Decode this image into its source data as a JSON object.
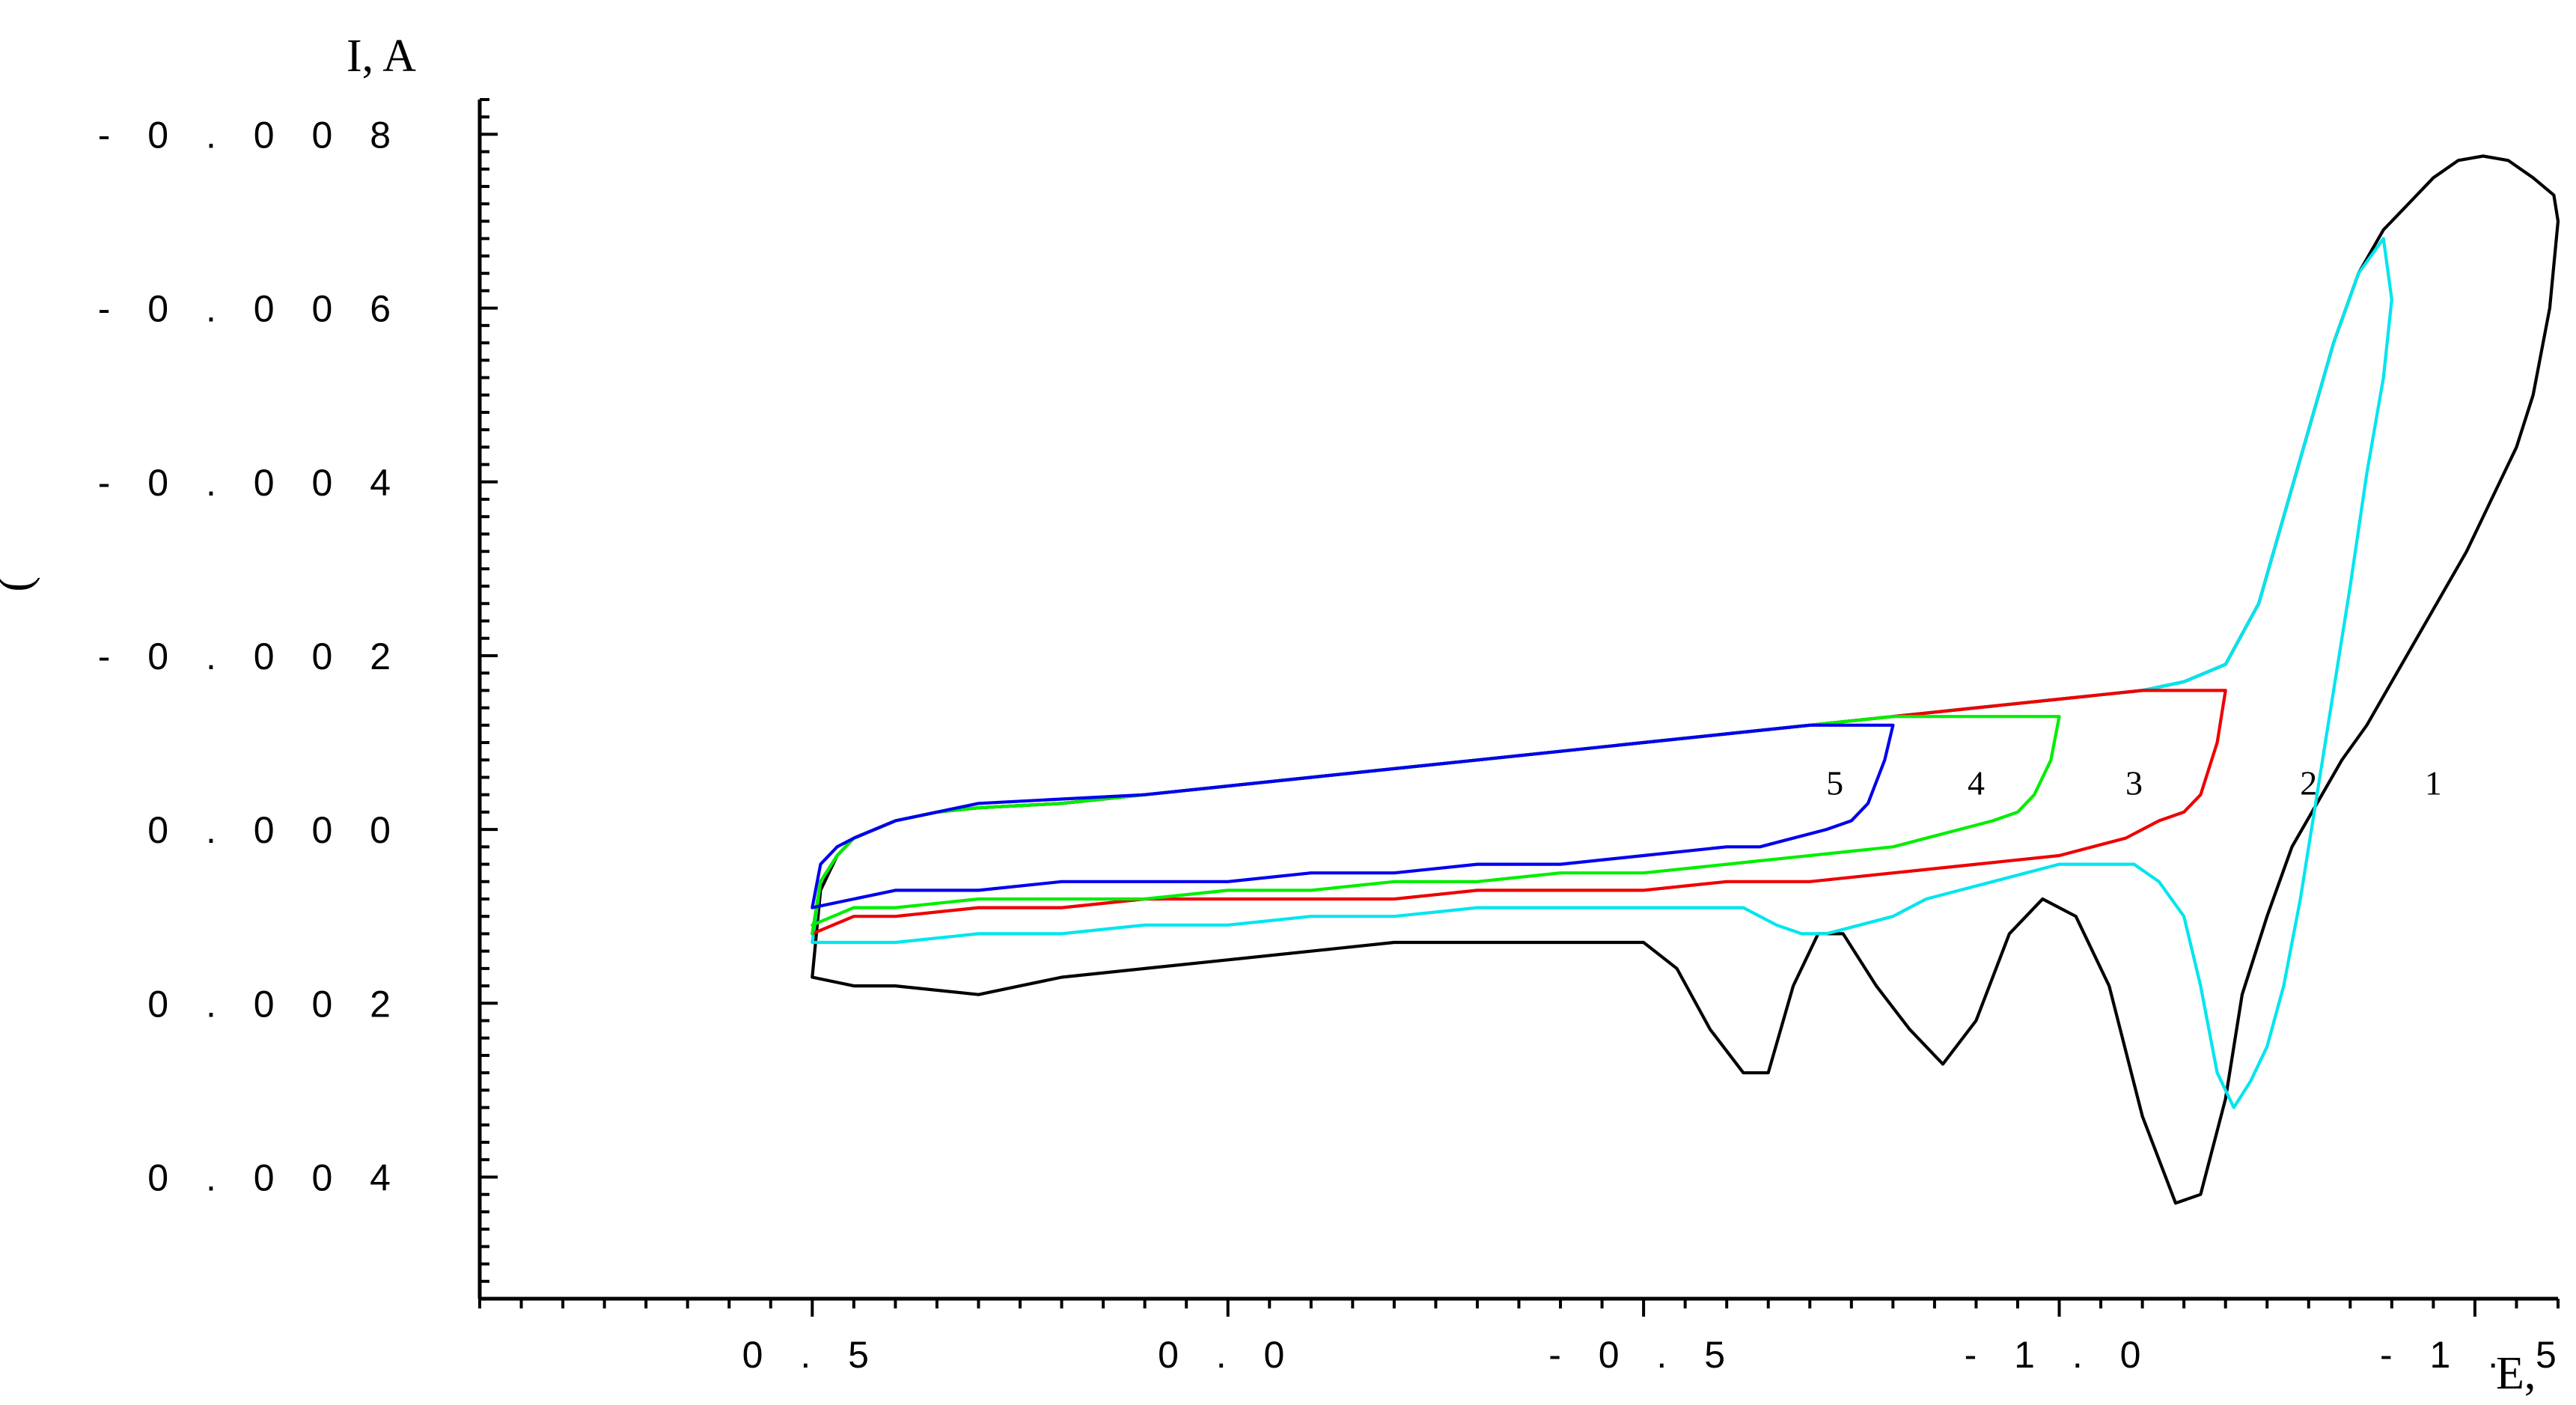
{
  "chart_data": {
    "type": "line",
    "xlabel": "E,",
    "ylabel": "I, A",
    "y_side_label": ")",
    "xlim": [
      0.9,
      -1.6
    ],
    "ylim": [
      0.0054,
      -0.0084
    ],
    "x_tick_values": [
      0.5,
      0.0,
      -0.5,
      -1.0,
      -1.5
    ],
    "x_tick_labels": [
      "0 . 5",
      "0 . 0",
      "- 0 . 5",
      "- 1 . 0",
      "- 1 . 5"
    ],
    "y_tick_values": [
      -0.008,
      -0.006,
      -0.004,
      -0.002,
      0.0,
      0.002,
      0.004
    ],
    "y_tick_labels": [
      "- 0 . 0 0 8",
      "- 0 . 0 0 6",
      "- 0 . 0 0 4",
      "- 0 . 0 0 2",
      "0 . 0 0 0",
      "0 . 0 0 2",
      "0 . 0 0 4"
    ],
    "series": [
      {
        "name": "1",
        "color": "#000000",
        "label_at": [
          -1.45,
          -0.0004
        ],
        "x": [
          0.5,
          0.49,
          0.47,
          0.45,
          0.4,
          0.35,
          0.3,
          0.2,
          0.1,
          0.0,
          -0.1,
          -0.2,
          -0.3,
          -0.4,
          -0.5,
          -0.6,
          -0.7,
          -0.8,
          -0.9,
          -1.0,
          -1.1,
          -1.15,
          -1.2,
          -1.24,
          -1.27,
          -1.3,
          -1.33,
          -1.36,
          -1.39,
          -1.42,
          -1.45,
          -1.48,
          -1.51,
          -1.54,
          -1.57,
          -1.595,
          -1.6,
          -1.59,
          -1.57,
          -1.55,
          -1.52,
          -1.49,
          -1.46,
          -1.43,
          -1.4,
          -1.37,
          -1.34,
          -1.31,
          -1.28,
          -1.25,
          -1.22,
          -1.2,
          -1.17,
          -1.14,
          -1.1,
          -1.06,
          -1.02,
          -0.98,
          -0.94,
          -0.9,
          -0.86,
          -0.82,
          -0.78,
          -0.74,
          -0.71,
          -0.68,
          -0.65,
          -0.62,
          -0.58,
          -0.54,
          -0.5,
          -0.45,
          -0.4,
          -0.3,
          -0.2,
          -0.1,
          0.0,
          0.1,
          0.2,
          0.25,
          0.3,
          0.4,
          0.45,
          0.5
        ],
        "y": [
          0.0017,
          0.0007,
          0.0003,
          0.0001,
          -0.0001,
          -0.0002,
          -0.00025,
          -0.0003,
          -0.0004,
          -0.0005,
          -0.0006,
          -0.0007,
          -0.0008,
          -0.0009,
          -0.001,
          -0.0011,
          -0.0012,
          -0.0013,
          -0.0014,
          -0.0015,
          -0.0016,
          -0.0017,
          -0.0019,
          -0.0026,
          -0.0036,
          -0.0046,
          -0.0056,
          -0.0064,
          -0.0069,
          -0.0072,
          -0.0075,
          -0.0077,
          -0.00775,
          -0.0077,
          -0.0075,
          -0.0073,
          -0.007,
          -0.006,
          -0.005,
          -0.0044,
          -0.0038,
          -0.0032,
          -0.0027,
          -0.0022,
          -0.0017,
          -0.0012,
          -0.0008,
          -0.0003,
          0.0002,
          0.001,
          0.0019,
          0.0031,
          0.0042,
          0.0043,
          0.0033,
          0.0018,
          0.001,
          0.0008,
          0.0012,
          0.0022,
          0.0027,
          0.0023,
          0.0018,
          0.0012,
          0.0012,
          0.0018,
          0.0028,
          0.0028,
          0.0023,
          0.0016,
          0.0013,
          0.0013,
          0.0013,
          0.0013,
          0.0013,
          0.0014,
          0.0015,
          0.0016,
          0.0017,
          0.0018,
          0.0019,
          0.0018,
          0.0018,
          0.0017
        ]
      },
      {
        "name": "2",
        "color": "#00e5ee",
        "label_at": [
          -1.3,
          -0.0004
        ],
        "x": [
          0.5,
          0.49,
          0.47,
          0.45,
          0.4,
          0.35,
          0.3,
          0.2,
          0.1,
          0.0,
          -0.1,
          -0.2,
          -0.3,
          -0.4,
          -0.5,
          -0.6,
          -0.7,
          -0.8,
          -0.9,
          -1.0,
          -1.1,
          -1.15,
          -1.2,
          -1.24,
          -1.27,
          -1.3,
          -1.33,
          -1.36,
          -1.39,
          -1.4,
          -1.39,
          -1.37,
          -1.35,
          -1.33,
          -1.31,
          -1.29,
          -1.27,
          -1.25,
          -1.23,
          -1.21,
          -1.19,
          -1.17,
          -1.15,
          -1.12,
          -1.09,
          -1.06,
          -1.03,
          -1.0,
          -0.96,
          -0.92,
          -0.88,
          -0.84,
          -0.8,
          -0.76,
          -0.72,
          -0.69,
          -0.66,
          -0.62,
          -0.56,
          -0.5,
          -0.4,
          -0.3,
          -0.2,
          -0.1,
          0.0,
          0.1,
          0.2,
          0.3,
          0.4,
          0.45,
          0.5
        ],
        "y": [
          0.0013,
          0.0006,
          0.0003,
          0.0001,
          -0.0001,
          -0.0002,
          -0.00025,
          -0.0003,
          -0.0004,
          -0.0005,
          -0.0006,
          -0.0007,
          -0.0008,
          -0.0009,
          -0.001,
          -0.0011,
          -0.0012,
          -0.0013,
          -0.0014,
          -0.0015,
          -0.0016,
          -0.0017,
          -0.0019,
          -0.0026,
          -0.0036,
          -0.0046,
          -0.0056,
          -0.0064,
          -0.0068,
          -0.0061,
          -0.0052,
          -0.0041,
          -0.0028,
          -0.0016,
          -0.0004,
          0.0008,
          0.0018,
          0.0025,
          0.0029,
          0.0032,
          0.0028,
          0.0018,
          0.001,
          0.0006,
          0.0004,
          0.0004,
          0.0004,
          0.0004,
          0.0005,
          0.0006,
          0.0007,
          0.0008,
          0.001,
          0.0011,
          0.0012,
          0.0012,
          0.0011,
          0.0009,
          0.0009,
          0.0009,
          0.0009,
          0.0009,
          0.001,
          0.001,
          0.0011,
          0.0011,
          0.0012,
          0.0012,
          0.0013,
          0.0013,
          0.0013
        ]
      },
      {
        "name": "3",
        "color": "#ee0000",
        "label_at": [
          -1.09,
          -0.0004
        ],
        "x": [
          0.5,
          0.49,
          0.47,
          0.45,
          0.4,
          0.35,
          0.3,
          0.2,
          0.1,
          0.0,
          -0.1,
          -0.2,
          -0.3,
          -0.4,
          -0.5,
          -0.6,
          -0.7,
          -0.8,
          -0.9,
          -1.0,
          -1.1,
          -1.15,
          -1.18,
          -1.2,
          -1.19,
          -1.17,
          -1.15,
          -1.12,
          -1.08,
          -1.04,
          -1.0,
          -0.9,
          -0.8,
          -0.7,
          -0.6,
          -0.5,
          -0.4,
          -0.3,
          -0.2,
          -0.1,
          0.0,
          0.1,
          0.2,
          0.3,
          0.4,
          0.45,
          0.5
        ],
        "y": [
          0.0012,
          0.0006,
          0.0003,
          0.0001,
          -0.0001,
          -0.0002,
          -0.00025,
          -0.0003,
          -0.0004,
          -0.0005,
          -0.0006,
          -0.0007,
          -0.0008,
          -0.0009,
          -0.001,
          -0.0011,
          -0.0012,
          -0.0013,
          -0.0014,
          -0.0015,
          -0.0016,
          -0.0016,
          -0.0016,
          -0.0016,
          -0.001,
          -0.0004,
          -0.0002,
          -0.0001,
          0.0001,
          0.0002,
          0.0003,
          0.0004,
          0.0005,
          0.0006,
          0.0006,
          0.0007,
          0.0007,
          0.0007,
          0.0008,
          0.0008,
          0.0008,
          0.0008,
          0.0009,
          0.0009,
          0.001,
          0.001,
          0.0012
        ]
      },
      {
        "name": "4",
        "color": "#00ee00",
        "label_at": [
          -0.9,
          -0.0004
        ],
        "x": [
          0.5,
          0.49,
          0.47,
          0.45,
          0.4,
          0.35,
          0.3,
          0.2,
          0.1,
          0.0,
          -0.1,
          -0.2,
          -0.3,
          -0.4,
          -0.5,
          -0.6,
          -0.7,
          -0.8,
          -0.9,
          -0.98,
          -1.0,
          -0.99,
          -0.97,
          -0.95,
          -0.92,
          -0.88,
          -0.84,
          -0.8,
          -0.7,
          -0.6,
          -0.5,
          -0.4,
          -0.3,
          -0.2,
          -0.1,
          0.0,
          0.1,
          0.2,
          0.3,
          0.4,
          0.45,
          0.5
        ],
        "y": [
          0.0012,
          0.0006,
          0.0003,
          0.0001,
          -0.0001,
          -0.0002,
          -0.00025,
          -0.0003,
          -0.0004,
          -0.0005,
          -0.0006,
          -0.0007,
          -0.0008,
          -0.0009,
          -0.001,
          -0.0011,
          -0.0012,
          -0.0013,
          -0.0013,
          -0.0013,
          -0.0013,
          -0.0008,
          -0.0004,
          -0.0002,
          -0.0001,
          0.0,
          0.0001,
          0.0002,
          0.0003,
          0.0004,
          0.0005,
          0.0005,
          0.0006,
          0.0006,
          0.0007,
          0.0007,
          0.0008,
          0.0008,
          0.0008,
          0.0009,
          0.0009,
          0.0011
        ]
      },
      {
        "name": "5",
        "color": "#0000ee",
        "label_at": [
          -0.73,
          -0.0004
        ],
        "x": [
          0.5,
          0.49,
          0.47,
          0.45,
          0.4,
          0.35,
          0.3,
          0.2,
          0.1,
          0.0,
          -0.1,
          -0.2,
          -0.3,
          -0.4,
          -0.5,
          -0.6,
          -0.7,
          -0.78,
          -0.8,
          -0.79,
          -0.77,
          -0.75,
          -0.72,
          -0.68,
          -0.64,
          -0.6,
          -0.5,
          -0.4,
          -0.3,
          -0.2,
          -0.1,
          0.0,
          0.1,
          0.2,
          0.3,
          0.4,
          0.45,
          0.5
        ],
        "y": [
          0.0009,
          0.0004,
          0.0002,
          0.0001,
          -0.0001,
          -0.0002,
          -0.0003,
          -0.00035,
          -0.0004,
          -0.0005,
          -0.0006,
          -0.0007,
          -0.0008,
          -0.0009,
          -0.001,
          -0.0011,
          -0.0012,
          -0.0012,
          -0.0012,
          -0.0008,
          -0.0003,
          -0.0001,
          0.0,
          0.0001,
          0.0002,
          0.0002,
          0.0003,
          0.0004,
          0.0004,
          0.0005,
          0.0005,
          0.0006,
          0.0006,
          0.0006,
          0.0007,
          0.0007,
          0.0008,
          0.0009
        ]
      }
    ]
  }
}
